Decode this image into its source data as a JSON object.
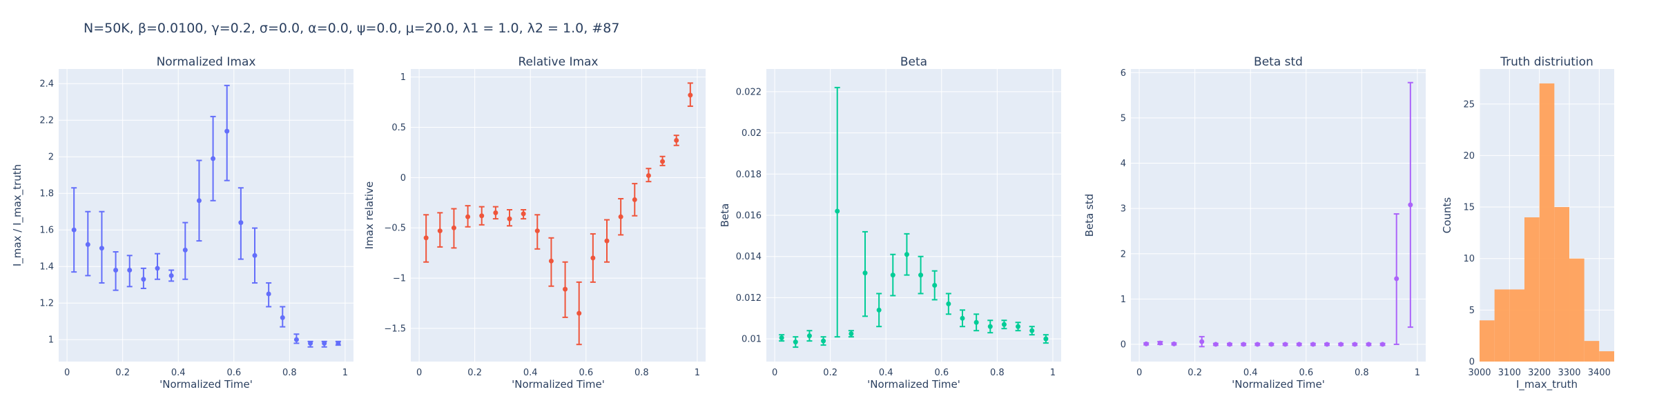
{
  "title": "N=50K, β=0.0100, γ=0.2, σ=0.0,  α=0.0, ψ=0.0, μ=20.0, λ1 = 1.0, λ2 = 1.0, #87",
  "chart_data": [
    {
      "type": "scatter",
      "title": "Normalized Imax",
      "xlabel": "'Normalized Time'",
      "ylabel": "I_max / I_max_truth",
      "color": "#636efa",
      "xlim": [
        -0.03,
        1.03
      ],
      "ylim": [
        0.88,
        2.48
      ],
      "xticks": [
        0,
        0.2,
        0.4,
        0.6,
        0.8,
        1
      ],
      "xtick_labels": [
        "0",
        "0.2",
        "0.4",
        "0.6",
        "0.8",
        "1"
      ],
      "yticks": [
        1,
        1.2,
        1.4,
        1.6,
        1.8,
        2,
        2.2,
        2.4
      ],
      "ytick_labels": [
        "1",
        "1.2",
        "1.4",
        "1.6",
        "1.8",
        "2",
        "2.2",
        "2.4"
      ],
      "points": [
        {
          "x": 0.025,
          "y": 1.6,
          "lo": 1.37,
          "hi": 1.83
        },
        {
          "x": 0.075,
          "y": 1.52,
          "lo": 1.35,
          "hi": 1.7
        },
        {
          "x": 0.125,
          "y": 1.5,
          "lo": 1.31,
          "hi": 1.7
        },
        {
          "x": 0.175,
          "y": 1.38,
          "lo": 1.27,
          "hi": 1.48
        },
        {
          "x": 0.225,
          "y": 1.38,
          "lo": 1.29,
          "hi": 1.46
        },
        {
          "x": 0.275,
          "y": 1.33,
          "lo": 1.28,
          "hi": 1.39
        },
        {
          "x": 0.325,
          "y": 1.39,
          "lo": 1.33,
          "hi": 1.47
        },
        {
          "x": 0.375,
          "y": 1.35,
          "lo": 1.32,
          "hi": 1.38
        },
        {
          "x": 0.425,
          "y": 1.49,
          "lo": 1.33,
          "hi": 1.64
        },
        {
          "x": 0.475,
          "y": 1.76,
          "lo": 1.54,
          "hi": 1.98
        },
        {
          "x": 0.525,
          "y": 1.99,
          "lo": 1.76,
          "hi": 2.22
        },
        {
          "x": 0.575,
          "y": 2.14,
          "lo": 1.87,
          "hi": 2.39
        },
        {
          "x": 0.625,
          "y": 1.64,
          "lo": 1.44,
          "hi": 1.83
        },
        {
          "x": 0.675,
          "y": 1.46,
          "lo": 1.31,
          "hi": 1.61
        },
        {
          "x": 0.725,
          "y": 1.25,
          "lo": 1.18,
          "hi": 1.31
        },
        {
          "x": 0.775,
          "y": 1.12,
          "lo": 1.07,
          "hi": 1.18
        },
        {
          "x": 0.825,
          "y": 1.0,
          "lo": 0.98,
          "hi": 1.03
        },
        {
          "x": 0.875,
          "y": 0.98,
          "lo": 0.96,
          "hi": 0.99
        },
        {
          "x": 0.925,
          "y": 0.98,
          "lo": 0.96,
          "hi": 0.99
        },
        {
          "x": 0.975,
          "y": 0.98,
          "lo": 0.97,
          "hi": 0.99
        }
      ]
    },
    {
      "type": "scatter",
      "title": "Relative Imax",
      "xlabel": "'Normalized Time'",
      "ylabel": "Imax relative",
      "color": "#ef553b",
      "xlim": [
        -0.03,
        1.03
      ],
      "ylim": [
        -1.83,
        1.08
      ],
      "xticks": [
        0,
        0.2,
        0.4,
        0.6,
        0.8,
        1
      ],
      "xtick_labels": [
        "0",
        "0.2",
        "0.4",
        "0.6",
        "0.8",
        "1"
      ],
      "yticks": [
        -1.5,
        -1,
        -0.5,
        0,
        0.5,
        1
      ],
      "ytick_labels": [
        "−1.5",
        "−1",
        "−0.5",
        "0",
        "0.5",
        "1"
      ],
      "points": [
        {
          "x": 0.025,
          "y": -0.6,
          "lo": -0.84,
          "hi": -0.37
        },
        {
          "x": 0.075,
          "y": -0.53,
          "lo": -0.69,
          "hi": -0.35
        },
        {
          "x": 0.125,
          "y": -0.5,
          "lo": -0.7,
          "hi": -0.31
        },
        {
          "x": 0.175,
          "y": -0.39,
          "lo": -0.49,
          "hi": -0.28
        },
        {
          "x": 0.225,
          "y": -0.38,
          "lo": -0.47,
          "hi": -0.29
        },
        {
          "x": 0.275,
          "y": -0.35,
          "lo": -0.41,
          "hi": -0.29
        },
        {
          "x": 0.325,
          "y": -0.41,
          "lo": -0.48,
          "hi": -0.32
        },
        {
          "x": 0.375,
          "y": -0.36,
          "lo": -0.41,
          "hi": -0.32
        },
        {
          "x": 0.425,
          "y": -0.53,
          "lo": -0.71,
          "hi": -0.37
        },
        {
          "x": 0.475,
          "y": -0.83,
          "lo": -1.08,
          "hi": -0.6
        },
        {
          "x": 0.525,
          "y": -1.11,
          "lo": -1.39,
          "hi": -0.84
        },
        {
          "x": 0.575,
          "y": -1.35,
          "lo": -1.66,
          "hi": -1.04
        },
        {
          "x": 0.625,
          "y": -0.8,
          "lo": -1.04,
          "hi": -0.56
        },
        {
          "x": 0.675,
          "y": -0.63,
          "lo": -0.84,
          "hi": -0.42
        },
        {
          "x": 0.725,
          "y": -0.39,
          "lo": -0.57,
          "hi": -0.21
        },
        {
          "x": 0.775,
          "y": -0.22,
          "lo": -0.38,
          "hi": -0.06
        },
        {
          "x": 0.825,
          "y": 0.02,
          "lo": -0.04,
          "hi": 0.09
        },
        {
          "x": 0.875,
          "y": 0.16,
          "lo": 0.12,
          "hi": 0.21
        },
        {
          "x": 0.925,
          "y": 0.37,
          "lo": 0.32,
          "hi": 0.42
        },
        {
          "x": 0.975,
          "y": 0.82,
          "lo": 0.71,
          "hi": 0.94
        }
      ]
    },
    {
      "type": "scatter",
      "title": "Beta",
      "xlabel": "'Normalized Time'",
      "ylabel": "Beta",
      "color": "#00cc96",
      "xlim": [
        -0.03,
        1.03
      ],
      "ylim": [
        0.0089,
        0.0231
      ],
      "xticks": [
        0,
        0.2,
        0.4,
        0.6,
        0.8,
        1
      ],
      "xtick_labels": [
        "0",
        "0.2",
        "0.4",
        "0.6",
        "0.8",
        "1"
      ],
      "yticks": [
        0.01,
        0.012,
        0.014,
        0.016,
        0.018,
        0.02,
        0.022
      ],
      "ytick_labels": [
        "0.01",
        "0.012",
        "0.014",
        "0.016",
        "0.018",
        "0.02",
        "0.022"
      ],
      "points": [
        {
          "x": 0.025,
          "y": 0.01005,
          "lo": 0.0099,
          "hi": 0.0102
        },
        {
          "x": 0.075,
          "y": 0.00985,
          "lo": 0.0096,
          "hi": 0.0101
        },
        {
          "x": 0.125,
          "y": 0.01015,
          "lo": 0.0099,
          "hi": 0.0104
        },
        {
          "x": 0.175,
          "y": 0.0099,
          "lo": 0.0097,
          "hi": 0.0101
        },
        {
          "x": 0.225,
          "y": 0.0162,
          "lo": 0.0101,
          "hi": 0.0222
        },
        {
          "x": 0.275,
          "y": 0.01025,
          "lo": 0.0101,
          "hi": 0.0104
        },
        {
          "x": 0.325,
          "y": 0.0132,
          "lo": 0.0111,
          "hi": 0.0152
        },
        {
          "x": 0.375,
          "y": 0.0114,
          "lo": 0.0106,
          "hi": 0.0122
        },
        {
          "x": 0.425,
          "y": 0.0131,
          "lo": 0.0121,
          "hi": 0.0141
        },
        {
          "x": 0.475,
          "y": 0.0141,
          "lo": 0.0131,
          "hi": 0.0151
        },
        {
          "x": 0.525,
          "y": 0.0131,
          "lo": 0.0122,
          "hi": 0.014
        },
        {
          "x": 0.575,
          "y": 0.0126,
          "lo": 0.0119,
          "hi": 0.0133
        },
        {
          "x": 0.625,
          "y": 0.0117,
          "lo": 0.0112,
          "hi": 0.0122
        },
        {
          "x": 0.675,
          "y": 0.011,
          "lo": 0.0106,
          "hi": 0.0114
        },
        {
          "x": 0.725,
          "y": 0.0108,
          "lo": 0.0104,
          "hi": 0.0112
        },
        {
          "x": 0.775,
          "y": 0.0106,
          "lo": 0.0103,
          "hi": 0.0109
        },
        {
          "x": 0.825,
          "y": 0.0107,
          "lo": 0.0105,
          "hi": 0.0109
        },
        {
          "x": 0.875,
          "y": 0.0106,
          "lo": 0.0104,
          "hi": 0.0108
        },
        {
          "x": 0.925,
          "y": 0.0104,
          "lo": 0.0102,
          "hi": 0.0106
        },
        {
          "x": 0.975,
          "y": 0.01,
          "lo": 0.0098,
          "hi": 0.0102
        }
      ]
    },
    {
      "type": "scatter",
      "title": "Beta std",
      "xlabel": "'Normalized Time'",
      "ylabel": "Beta std",
      "color": "#ab63fa",
      "xlim": [
        -0.03,
        1.03
      ],
      "ylim": [
        -0.38,
        6.08
      ],
      "xticks": [
        0,
        0.2,
        0.4,
        0.6,
        0.8,
        1
      ],
      "xtick_labels": [
        "0",
        "0.2",
        "0.4",
        "0.6",
        "0.8",
        "1"
      ],
      "yticks": [
        0,
        1,
        2,
        3,
        4,
        5,
        6
      ],
      "ytick_labels": [
        "0",
        "1",
        "2",
        "3",
        "4",
        "5",
        "6"
      ],
      "points": [
        {
          "x": 0.025,
          "y": 0.01,
          "lo": -0.01,
          "hi": 0.03
        },
        {
          "x": 0.075,
          "y": 0.03,
          "lo": 0.0,
          "hi": 0.06
        },
        {
          "x": 0.125,
          "y": 0.01,
          "lo": -0.01,
          "hi": 0.03
        },
        {
          "x": 0.225,
          "y": 0.06,
          "lo": -0.05,
          "hi": 0.17
        },
        {
          "x": 0.275,
          "y": 0.0,
          "lo": -0.02,
          "hi": 0.02
        },
        {
          "x": 0.325,
          "y": 0.0,
          "lo": -0.02,
          "hi": 0.02
        },
        {
          "x": 0.375,
          "y": 0.0,
          "lo": -0.02,
          "hi": 0.02
        },
        {
          "x": 0.425,
          "y": 0.0,
          "lo": -0.02,
          "hi": 0.02
        },
        {
          "x": 0.475,
          "y": 0.0,
          "lo": -0.02,
          "hi": 0.02
        },
        {
          "x": 0.525,
          "y": 0.0,
          "lo": -0.02,
          "hi": 0.02
        },
        {
          "x": 0.575,
          "y": 0.0,
          "lo": -0.02,
          "hi": 0.02
        },
        {
          "x": 0.625,
          "y": 0.0,
          "lo": -0.02,
          "hi": 0.02
        },
        {
          "x": 0.675,
          "y": 0.0,
          "lo": -0.02,
          "hi": 0.02
        },
        {
          "x": 0.725,
          "y": 0.0,
          "lo": -0.02,
          "hi": 0.02
        },
        {
          "x": 0.775,
          "y": 0.0,
          "lo": -0.02,
          "hi": 0.02
        },
        {
          "x": 0.825,
          "y": 0.0,
          "lo": -0.02,
          "hi": 0.02
        },
        {
          "x": 0.875,
          "y": 0.0,
          "lo": -0.02,
          "hi": 0.02
        },
        {
          "x": 0.925,
          "y": 1.45,
          "lo": 0.0,
          "hi": 2.88
        },
        {
          "x": 0.975,
          "y": 3.08,
          "lo": 0.38,
          "hi": 5.78
        }
      ]
    },
    {
      "type": "bar",
      "title": "Truth distriution",
      "xlabel": "I_max_truth",
      "ylabel": "Counts",
      "color": "#ffa15a",
      "xlim": [
        3000,
        3450
      ],
      "ylim": [
        0,
        28.4
      ],
      "xticks": [
        3000,
        3100,
        3200,
        3300,
        3400
      ],
      "xtick_labels": [
        "3000",
        "3100",
        "3200",
        "3300",
        "3400"
      ],
      "yticks": [
        0,
        5,
        10,
        15,
        20,
        25
      ],
      "ytick_labels": [
        "0",
        "5",
        "10",
        "15",
        "20",
        "25"
      ],
      "bins": [
        {
          "x0": 3000,
          "x1": 3050,
          "count": 4
        },
        {
          "x0": 3050,
          "x1": 3100,
          "count": 7
        },
        {
          "x0": 3100,
          "x1": 3150,
          "count": 7
        },
        {
          "x0": 3150,
          "x1": 3200,
          "count": 14
        },
        {
          "x0": 3200,
          "x1": 3250,
          "count": 27
        },
        {
          "x0": 3250,
          "x1": 3300,
          "count": 15
        },
        {
          "x0": 3300,
          "x1": 3350,
          "count": 10
        },
        {
          "x0": 3350,
          "x1": 3400,
          "count": 2
        },
        {
          "x0": 3400,
          "x1": 3450,
          "count": 1
        }
      ]
    }
  ]
}
